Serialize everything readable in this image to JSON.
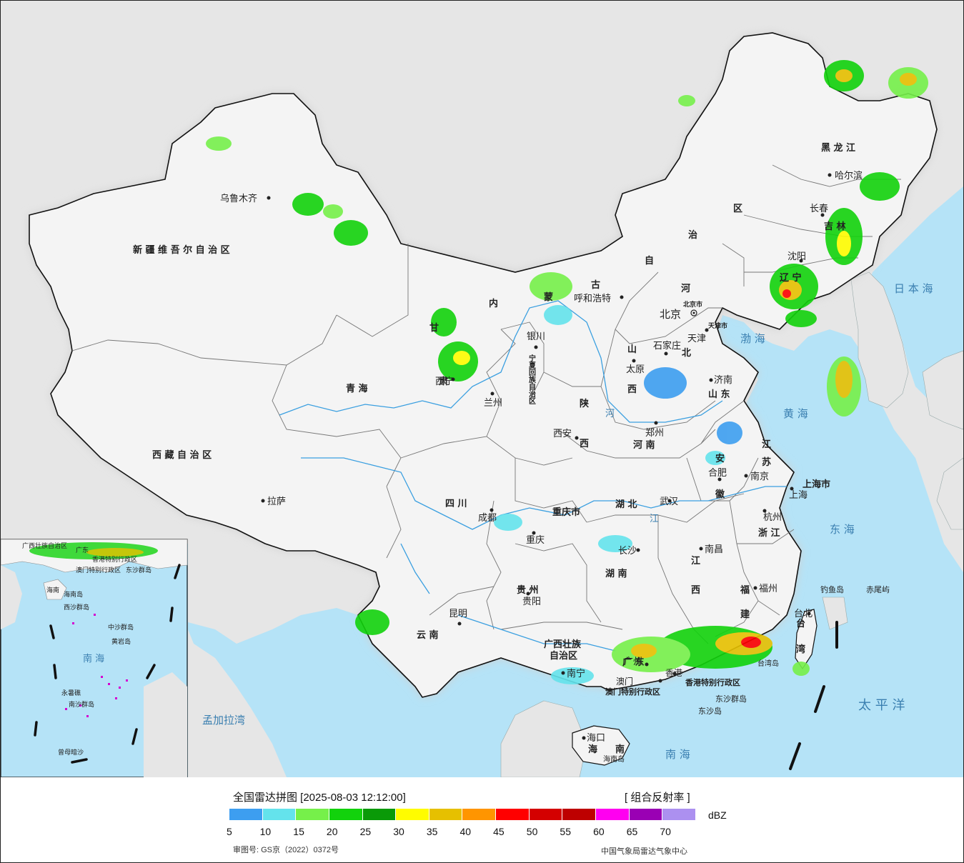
{
  "legend": {
    "title": "全国雷达拼图 [2025-08-03 12:12:00]",
    "product": "[ 组合反射率 ]",
    "unit": "dBZ",
    "colors": [
      "#3d9ef0",
      "#64e3ec",
      "#76f04a",
      "#12d20c",
      "#0a9a08",
      "#fffc00",
      "#e6c000",
      "#ff9500",
      "#ff0000",
      "#d40000",
      "#be0000",
      "#ff00f0",
      "#9a00b4",
      "#ac90f0"
    ],
    "ticks": [
      "5",
      "10",
      "15",
      "20",
      "25",
      "30",
      "35",
      "40",
      "45",
      "50",
      "55",
      "60",
      "65",
      "70"
    ],
    "approval_no": "审图号: GS京（2022）0372号",
    "agency": "中国气象局雷达气象中心"
  },
  "map": {
    "colors": {
      "ocean": "#b5e3f7",
      "land": "#f4f4f4",
      "foreign": "#e6e6e6",
      "border": "#111111",
      "river": "#3a9fe0"
    },
    "regions": [
      {
        "id": "xinjiang",
        "text": "新 疆 维 吾 尔 自 治 区"
      },
      {
        "id": "xizang",
        "text": "西 藏 自 治 区"
      },
      {
        "id": "qinghai",
        "text": "青        海"
      },
      {
        "id": "gansu_a",
        "text": "甘"
      },
      {
        "id": "gansu_b",
        "text": "肃"
      },
      {
        "id": "neimenggu_1",
        "text": "内"
      },
      {
        "id": "neimenggu_2",
        "text": "蒙"
      },
      {
        "id": "neimenggu_3",
        "text": "古"
      },
      {
        "id": "neimenggu_4",
        "text": "自"
      },
      {
        "id": "neimenggu_5",
        "text": "治"
      },
      {
        "id": "neimenggu_6",
        "text": "区"
      },
      {
        "id": "heilongjiang",
        "text": "黑    龙    江"
      },
      {
        "id": "jilin",
        "text": "吉    林"
      },
      {
        "id": "liaoning",
        "text": "辽   宁"
      },
      {
        "id": "hebei_a",
        "text": "河"
      },
      {
        "id": "hebei_b",
        "text": "北"
      },
      {
        "id": "shanxi_a",
        "text": "山"
      },
      {
        "id": "shanxi_b",
        "text": "西"
      },
      {
        "id": "shandong",
        "text": "山  东"
      },
      {
        "id": "shaanxi_a",
        "text": "陕"
      },
      {
        "id": "shaanxi_b",
        "text": "西"
      },
      {
        "id": "henan",
        "text": "河   南"
      },
      {
        "id": "ningxia",
        "text": "宁夏回族自治区"
      },
      {
        "id": "sichuan",
        "text": "四   川"
      },
      {
        "id": "chongqing",
        "text": "重庆市"
      },
      {
        "id": "hubei",
        "text": "湖   北"
      },
      {
        "id": "anhui_a",
        "text": "安"
      },
      {
        "id": "anhui_b",
        "text": "徽"
      },
      {
        "id": "jiangsu_a",
        "text": "江"
      },
      {
        "id": "jiangsu_b",
        "text": "苏"
      },
      {
        "id": "shanghai",
        "text": "上海市"
      },
      {
        "id": "zhejiang",
        "text": "浙 江"
      },
      {
        "id": "jiangxi_a",
        "text": "江"
      },
      {
        "id": "jiangxi_b",
        "text": "西"
      },
      {
        "id": "hunan",
        "text": "湖   南"
      },
      {
        "id": "guizhou",
        "text": "贵   州"
      },
      {
        "id": "yunnan",
        "text": "云   南"
      },
      {
        "id": "guangxi_a",
        "text": "广西壮族"
      },
      {
        "id": "guangxi_b",
        "text": "自治区"
      },
      {
        "id": "guangdong",
        "text": "广    东"
      },
      {
        "id": "fujian_a",
        "text": "福"
      },
      {
        "id": "fujian_b",
        "text": "建"
      },
      {
        "id": "taiwan_a",
        "text": "台"
      },
      {
        "id": "taiwan_b",
        "text": "湾"
      },
      {
        "id": "hainan_a",
        "text": "海"
      },
      {
        "id": "hainan_b",
        "text": "南"
      },
      {
        "id": "hongkong",
        "text": "香港特别行政区"
      },
      {
        "id": "macau",
        "text": "澳门特别行政区"
      },
      {
        "id": "beijing_city",
        "text": "北京市"
      },
      {
        "id": "tianjin_city",
        "text": "天津市"
      },
      {
        "id": "hainan_island",
        "text": "海南岛"
      },
      {
        "id": "taiwan_island",
        "text": "台湾岛"
      },
      {
        "id": "dongsha",
        "text": "东沙群岛"
      },
      {
        "id": "dongsha_dao",
        "text": "东沙岛"
      },
      {
        "id": "diaoyu",
        "text": "钓鱼岛"
      },
      {
        "id": "chiwei",
        "text": "赤尾屿"
      }
    ],
    "cities": [
      {
        "id": "urumqi",
        "name": "乌鲁木齐"
      },
      {
        "id": "lhasa",
        "name": "拉萨"
      },
      {
        "id": "xining",
        "name": "西宁"
      },
      {
        "id": "lanzhou",
        "name": "兰州"
      },
      {
        "id": "yinchuan",
        "name": "银川"
      },
      {
        "id": "hohhot",
        "name": "呼和浩特"
      },
      {
        "id": "beijing",
        "name": "北京"
      },
      {
        "id": "tianjin",
        "name": "天津"
      },
      {
        "id": "shijiazhuang",
        "name": "石家庄"
      },
      {
        "id": "taiyuan",
        "name": "太原"
      },
      {
        "id": "jinan",
        "name": "济南"
      },
      {
        "id": "zhengzhou",
        "name": "郑州"
      },
      {
        "id": "xian",
        "name": "西安"
      },
      {
        "id": "harbin",
        "name": "哈尔滨"
      },
      {
        "id": "changchun",
        "name": "长春"
      },
      {
        "id": "shenyang",
        "name": "沈阳"
      },
      {
        "id": "chengdu",
        "name": "成都"
      },
      {
        "id": "chongqing_c",
        "name": "重庆"
      },
      {
        "id": "wuhan",
        "name": "武汉"
      },
      {
        "id": "hefei",
        "name": "合肥"
      },
      {
        "id": "nanjing",
        "name": "南京"
      },
      {
        "id": "shanghai_c",
        "name": "上海"
      },
      {
        "id": "hangzhou",
        "name": "杭州"
      },
      {
        "id": "nanchang",
        "name": "南昌"
      },
      {
        "id": "changsha",
        "name": "长沙"
      },
      {
        "id": "fuzhou",
        "name": "福州"
      },
      {
        "id": "guiyang",
        "name": "贵阳"
      },
      {
        "id": "kunming",
        "name": "昆明"
      },
      {
        "id": "nanning",
        "name": "南宁"
      },
      {
        "id": "guangzhou",
        "name": "广州"
      },
      {
        "id": "haikou",
        "name": "海口"
      },
      {
        "id": "taibei",
        "name": "台北"
      },
      {
        "id": "hongkong_c",
        "name": "香港"
      },
      {
        "id": "macau_c",
        "name": "澳门"
      }
    ],
    "seas": [
      {
        "id": "japan_sea",
        "name": "日 本 海"
      },
      {
        "id": "bohai",
        "name": "渤 海"
      },
      {
        "id": "yellow_sea",
        "name": "黄 海"
      },
      {
        "id": "east_sea",
        "name": "东 海"
      },
      {
        "id": "south_sea",
        "name": "南    海"
      },
      {
        "id": "pacific",
        "name": "太 平 洋"
      },
      {
        "id": "bengal",
        "name": "孟加拉湾"
      },
      {
        "id": "yangtze",
        "name": "江"
      },
      {
        "id": "yellow_river",
        "name": "河"
      }
    ],
    "inset": {
      "labels": [
        {
          "id": "i_guangxi",
          "text": "广西壮族自治区"
        },
        {
          "id": "i_guangdong",
          "text": "广东"
        },
        {
          "id": "i_hk",
          "text": "香港特别行政区"
        },
        {
          "id": "i_macau",
          "text": "澳门特别行政区"
        },
        {
          "id": "i_dongsha",
          "text": "东沙群岛"
        },
        {
          "id": "i_hainan",
          "text": "海南"
        },
        {
          "id": "i_hainan_dao",
          "text": "海南岛"
        },
        {
          "id": "i_xisha",
          "text": "西沙群岛"
        },
        {
          "id": "i_zhongsha",
          "text": "中沙群岛"
        },
        {
          "id": "i_huangyan",
          "text": "黄岩岛"
        },
        {
          "id": "i_nansha",
          "text": "南沙群岛"
        },
        {
          "id": "i_yongshu",
          "text": "永暑礁"
        },
        {
          "id": "i_zengmu",
          "text": "曾母暗沙"
        },
        {
          "id": "i_southsea",
          "text": "南 海"
        }
      ]
    }
  }
}
